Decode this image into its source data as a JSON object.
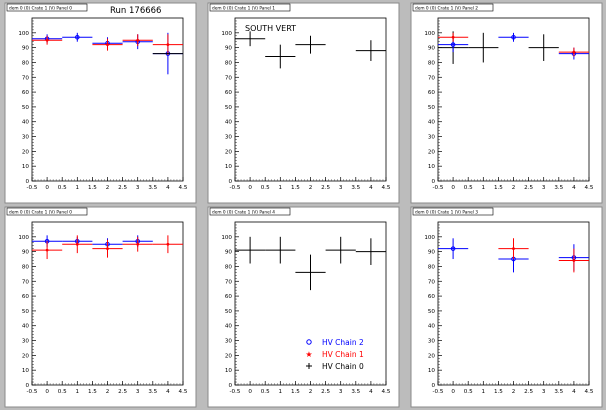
{
  "run_label": "Run 176666",
  "legend": {
    "entries": [
      {
        "label": "HV Chain 2",
        "color": "#0000ff",
        "marker": "open-circle"
      },
      {
        "label": "HV Chain 1",
        "color": "#ff0000",
        "marker": "star"
      },
      {
        "label": "HV Chain 0",
        "color": "#000000",
        "marker": "cross"
      }
    ]
  },
  "colors": {
    "chain2": "#0000ff",
    "chain1": "#ff0000",
    "chain0": "#000000",
    "pad": "#ffffff",
    "canvas": "#bcbcbc"
  },
  "chart_data": [
    {
      "type": "scatter",
      "title": "dem 0 (0) Crate 1 (V) Panel 0",
      "xlim": [
        -0.5,
        4.5
      ],
      "ylim": [
        0,
        110
      ],
      "xticks": [
        -0.5,
        0,
        0.5,
        1,
        1.5,
        2,
        2.5,
        3,
        3.5,
        4,
        4.5
      ],
      "yticks": [
        0,
        10,
        20,
        30,
        40,
        50,
        60,
        70,
        80,
        90,
        100
      ],
      "annotation": "",
      "series": [
        {
          "name": "HV Chain 2",
          "color": "#0000ff",
          "points": [
            {
              "x": 0,
              "y": 96,
              "xerr": 0.5,
              "yerr": 3
            },
            {
              "x": 1,
              "y": 97,
              "xerr": 0.5,
              "yerr": 3
            },
            {
              "x": 2,
              "y": 93,
              "xerr": 0.5,
              "yerr": 4
            },
            {
              "x": 3,
              "y": 94,
              "xerr": 0.5,
              "yerr": 5
            },
            {
              "x": 4,
              "y": 86,
              "xerr": 0.5,
              "yerr": 14
            }
          ]
        },
        {
          "name": "HV Chain 1",
          "color": "#ff0000",
          "points": [
            {
              "x": 0,
              "y": 95,
              "xerr": 0.5,
              "yerr": 3
            },
            {
              "x": 2,
              "y": 92,
              "xerr": 0.5,
              "yerr": 4
            },
            {
              "x": 3,
              "y": 95,
              "xerr": 0.5,
              "yerr": 4
            },
            {
              "x": 4,
              "y": 92,
              "xerr": 0.5,
              "yerr": 7
            }
          ]
        },
        {
          "name": "HV Chain 0",
          "color": "#000000",
          "points": [
            {
              "x": 4,
              "y": 86,
              "xerr": 0.5,
              "yerr": 0
            }
          ]
        }
      ]
    },
    {
      "type": "scatter",
      "title": "dem 0 (0) Crate 1 (V) Panel 1",
      "xlim": [
        -0.5,
        4.5
      ],
      "ylim": [
        0,
        110
      ],
      "xticks": [
        -0.5,
        0,
        0.5,
        1,
        1.5,
        2,
        2.5,
        3,
        3.5,
        4,
        4.5
      ],
      "yticks": [
        0,
        10,
        20,
        30,
        40,
        50,
        60,
        70,
        80,
        90,
        100
      ],
      "annotation": "SOUTH VERT",
      "series": [
        {
          "name": "HV Chain 0",
          "color": "#000000",
          "points": [
            {
              "x": 0,
              "y": 96,
              "xerr": 0.5,
              "yerr": 5
            },
            {
              "x": 1,
              "y": 84,
              "xerr": 0.5,
              "yerr": 8
            },
            {
              "x": 2,
              "y": 92,
              "xerr": 0.5,
              "yerr": 6
            },
            {
              "x": 4,
              "y": 88,
              "xerr": 0.5,
              "yerr": 7
            }
          ]
        }
      ]
    },
    {
      "type": "scatter",
      "title": "dem 0 (0) Crate 1 (V) Panel 2",
      "xlim": [
        -0.5,
        4.5
      ],
      "ylim": [
        0,
        110
      ],
      "xticks": [
        -0.5,
        0,
        0.5,
        1,
        1.5,
        2,
        2.5,
        3,
        3.5,
        4,
        4.5
      ],
      "yticks": [
        0,
        10,
        20,
        30,
        40,
        50,
        60,
        70,
        80,
        90,
        100
      ],
      "annotation": "",
      "series": [
        {
          "name": "HV Chain 0",
          "color": "#000000",
          "points": [
            {
              "x": 0,
              "y": 90,
              "xerr": 0.5,
              "yerr": 11
            },
            {
              "x": 1,
              "y": 90,
              "xerr": 0.5,
              "yerr": 10
            },
            {
              "x": 3,
              "y": 90,
              "xerr": 0.5,
              "yerr": 9
            }
          ]
        },
        {
          "name": "HV Chain 2",
          "color": "#0000ff",
          "points": [
            {
              "x": 0,
              "y": 92,
              "xerr": 0.5,
              "yerr": 5
            },
            {
              "x": 2,
              "y": 97,
              "xerr": 0.5,
              "yerr": 3
            },
            {
              "x": 4,
              "y": 86,
              "xerr": 0.5,
              "yerr": 4
            }
          ]
        },
        {
          "name": "HV Chain 1",
          "color": "#ff0000",
          "points": [
            {
              "x": 0,
              "y": 97,
              "xerr": 0.5,
              "yerr": 3
            },
            {
              "x": 4,
              "y": 87,
              "xerr": 0.5,
              "yerr": 3
            }
          ]
        }
      ]
    },
    {
      "type": "scatter",
      "title": "dem 0 (0) Crate 1 (V) Panel 0",
      "xlim": [
        -0.5,
        4.5
      ],
      "ylim": [
        0,
        110
      ],
      "xticks": [
        -0.5,
        0,
        0.5,
        1,
        1.5,
        2,
        2.5,
        3,
        3.5,
        4,
        4.5
      ],
      "yticks": [
        0,
        10,
        20,
        30,
        40,
        50,
        60,
        70,
        80,
        90,
        100
      ],
      "annotation": "",
      "series": [
        {
          "name": "HV Chain 2",
          "color": "#0000ff",
          "points": [
            {
              "x": 0,
              "y": 97,
              "xerr": 0.5,
              "yerr": 4
            },
            {
              "x": 1,
              "y": 97,
              "xerr": 0.5,
              "yerr": 3
            },
            {
              "x": 2,
              "y": 95,
              "xerr": 0.5,
              "yerr": 4
            },
            {
              "x": 3,
              "y": 97,
              "xerr": 0.5,
              "yerr": 4
            }
          ]
        },
        {
          "name": "HV Chain 1",
          "color": "#ff0000",
          "points": [
            {
              "x": 0,
              "y": 91,
              "xerr": 0.5,
              "yerr": 6
            },
            {
              "x": 1,
              "y": 95,
              "xerr": 0.5,
              "yerr": 6
            },
            {
              "x": 2,
              "y": 92,
              "xerr": 0.5,
              "yerr": 6
            },
            {
              "x": 3,
              "y": 95,
              "xerr": 0.5,
              "yerr": 5
            },
            {
              "x": 4,
              "y": 95,
              "xerr": 0.5,
              "yerr": 6
            }
          ]
        }
      ]
    },
    {
      "type": "scatter",
      "title": "dem 0 (0) Crate 1 (V) Panel 4",
      "xlim": [
        -0.5,
        4.5
      ],
      "ylim": [
        0,
        110
      ],
      "xticks": [
        -0.5,
        0,
        0.5,
        1,
        1.5,
        2,
        2.5,
        3,
        3.5,
        4,
        4.5
      ],
      "yticks": [
        0,
        10,
        20,
        30,
        40,
        50,
        60,
        70,
        80,
        90,
        100
      ],
      "annotation": "",
      "series": [
        {
          "name": "HV Chain 0",
          "color": "#000000",
          "points": [
            {
              "x": 0,
              "y": 91,
              "xerr": 0.5,
              "yerr": 9
            },
            {
              "x": 1,
              "y": 91,
              "xerr": 0.5,
              "yerr": 9
            },
            {
              "x": 2,
              "y": 76,
              "xerr": 0.5,
              "yerr": 12
            },
            {
              "x": 3,
              "y": 91,
              "xerr": 0.5,
              "yerr": 9
            },
            {
              "x": 4,
              "y": 90,
              "xerr": 0.5,
              "yerr": 9
            }
          ]
        }
      ]
    },
    {
      "type": "scatter",
      "title": "dem 0 (0) Crate 1 (V) Panel 3",
      "xlim": [
        -0.5,
        4.5
      ],
      "ylim": [
        0,
        110
      ],
      "xticks": [
        -0.5,
        0,
        0.5,
        1,
        1.5,
        2,
        2.5,
        3,
        3.5,
        4,
        4.5
      ],
      "yticks": [
        0,
        10,
        20,
        30,
        40,
        50,
        60,
        70,
        80,
        90,
        100
      ],
      "annotation": "",
      "series": [
        {
          "name": "HV Chain 2",
          "color": "#0000ff",
          "points": [
            {
              "x": 0,
              "y": 92,
              "xerr": 0.5,
              "yerr": 7
            },
            {
              "x": 2,
              "y": 85,
              "xerr": 0.5,
              "yerr": 9
            },
            {
              "x": 4,
              "y": 86,
              "xerr": 0.5,
              "yerr": 9
            }
          ]
        },
        {
          "name": "HV Chain 1",
          "color": "#ff0000",
          "points": [
            {
              "x": 2,
              "y": 92,
              "xerr": 0.5,
              "yerr": 7
            },
            {
              "x": 4,
              "y": 84,
              "xerr": 0.5,
              "yerr": 8
            }
          ]
        }
      ]
    }
  ]
}
